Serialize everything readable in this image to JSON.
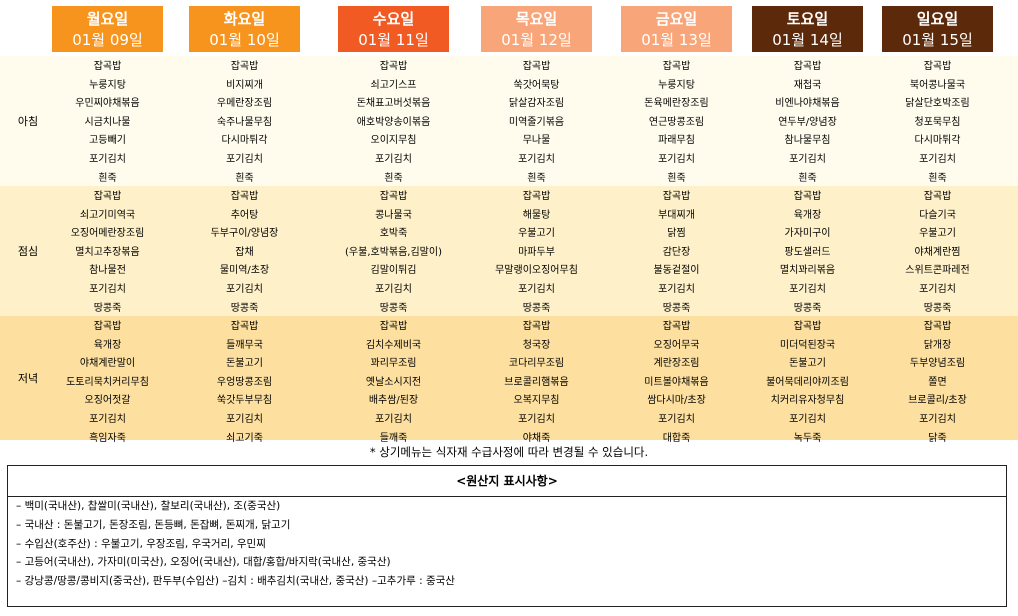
{
  "meal_labels": {
    "breakfast": "아침",
    "lunch": "점심",
    "dinner": "저녁"
  },
  "days": [
    {
      "name": "월요일",
      "date": "01월 09일",
      "color": "#F7941D",
      "breakfast": [
        "잡곡밥",
        "누룽지탕",
        "우민찌야채볶음",
        "시금치나물",
        "고등빼기",
        "포기김치",
        "흰죽"
      ],
      "lunch": [
        "잡곡밥",
        "쇠고기미역국",
        "오징어메란장조림",
        "멸치고추장볶음",
        "참나물전",
        "포기김치",
        "땅콩죽"
      ],
      "dinner": [
        "잡곡밥",
        "육개장",
        "야채계란말이",
        "도토리묵치커리무침",
        "오징어젓갈",
        "포기김치",
        "흑임자죽"
      ]
    },
    {
      "name": "화요일",
      "date": "01월 10일",
      "color": "#F7941D",
      "breakfast": [
        "잡곡밥",
        "비지찌개",
        "우메란장조림",
        "숙주나물무침",
        "다시마튀각",
        "포기김치",
        "흰죽"
      ],
      "lunch": [
        "잡곡밥",
        "추어탕",
        "두부구이/양념장",
        "잡채",
        "물미역/초장",
        "포기김치",
        "땅콩죽"
      ],
      "dinner": [
        "잡곡밥",
        "들깨무국",
        "돈불고기",
        "우엉땅콩조림",
        "쑥갓두부무침",
        "포기김치",
        "쇠고기죽"
      ]
    },
    {
      "name": "수요일",
      "date": "01월 11일",
      "color": "#F15A22",
      "breakfast": [
        "잡곡밥",
        "쇠고기스프",
        "돈채표고버섯볶음",
        "애호박양송이볶음",
        "오이지무침",
        "포기김치",
        "흰죽"
      ],
      "lunch": [
        "잡곡밥",
        "콩나물국",
        "호박죽",
        "(우불,호박볶음,김말이)",
        "김말이튀김",
        "포기김치",
        "땅콩죽"
      ],
      "dinner": [
        "잡곡밥",
        "김치수제비국",
        "꽈리무조림",
        "옛날소시지전",
        "배추쌈/된장",
        "포기김치",
        "들깨죽"
      ]
    },
    {
      "name": "목요일",
      "date": "01월 12일",
      "color": "#F9A57A",
      "breakfast": [
        "잡곡밥",
        "쑥갓어묵탕",
        "닭살감자조림",
        "미역줄기볶음",
        "무나물",
        "포기김치",
        "흰죽"
      ],
      "lunch": [
        "잡곡밥",
        "해물탕",
        "우불고기",
        "마파두부",
        "무말랭이오징어무침",
        "포기김치",
        "땅콩죽"
      ],
      "dinner": [
        "잡곡밥",
        "청국장",
        "코다리무조림",
        "브로콜리햄볶음",
        "오복지무침",
        "포기김치",
        "야채죽"
      ]
    },
    {
      "name": "금요일",
      "date": "01월 13일",
      "color": "#F9A57A",
      "breakfast": [
        "잡곡밥",
        "누룽지탕",
        "돈육메란장조림",
        "연근땅콩조림",
        "파래무침",
        "포기김치",
        "흰죽"
      ],
      "lunch": [
        "잡곡밥",
        "부대찌개",
        "닭찜",
        "감단장",
        "불동겉절이",
        "포기김치",
        "땅콩죽"
      ],
      "dinner": [
        "잡곡밥",
        "오징어무국",
        "계란장조림",
        "미트볼야채볶음",
        "쌈다시마/초장",
        "포기김치",
        "대합죽"
      ]
    },
    {
      "name": "토요일",
      "date": "01월 14일",
      "color": "#5C2A0A",
      "breakfast": [
        "잡곡밥",
        "재첩국",
        "비엔나야채볶음",
        "연두부/양념장",
        "참나물무침",
        "포기김치",
        "흰죽"
      ],
      "lunch": [
        "잡곡밥",
        "육개장",
        "가자미구이",
        "팡도샐러드",
        "멸치꽈리볶음",
        "포기김치",
        "땅콩죽"
      ],
      "dinner": [
        "잡곡밥",
        "미더덕된장국",
        "돈불고기",
        "불어묵데리야끼조림",
        "치커리유자청무침",
        "포기김치",
        "녹두죽"
      ]
    },
    {
      "name": "일요일",
      "date": "01월 15일",
      "color": "#5C2A0A",
      "breakfast": [
        "잡곡밥",
        "북어콩나물국",
        "닭살단호박조림",
        "청포묵무침",
        "다시마튀각",
        "포기김치",
        "흰죽"
      ],
      "lunch": [
        "잡곡밥",
        "다슬기국",
        "우불고기",
        "야채계란찜",
        "스위트콘파레전",
        "포기김치",
        "땅콩죽"
      ],
      "dinner": [
        "잡곡밥",
        "닭개장",
        "두부양념조림",
        "쫄면",
        "브로콜리/초장",
        "포기김치",
        "닭죽"
      ]
    }
  ],
  "colors": {
    "band_breakfast": "#FFFCEE",
    "band_lunch": "#FEF0C8",
    "band_dinner": "#FDE0A0"
  },
  "notice": "* 상기메뉴는 식자재 수급사정에 따라 변경될 수 있습니다.",
  "origin": {
    "title": "<원산지 표시사항>",
    "lines": [
      "– 백미(국내산), 찹쌀미(국내산), 찰보리(국내산), 조(중국산)",
      "– 국내산 : 돈불고기, 돈장조림, 돈등뼈, 돈잡뼈, 돈찌개, 닭고기",
      "– 수입산(호주산) : 우불고기, 우장조림, 우국거리, 우민찌",
      "– 고등어(국내산), 가자미(미국산), 오징어(국내산), 대합/홍합/바지락(국내산, 중국산)",
      "– 강낭콩/땅콩/콩비지(중국산), 판두부(수입산)   –김치 : 배추김치(국내산, 중국산)      –고추가루 : 중국산"
    ]
  }
}
